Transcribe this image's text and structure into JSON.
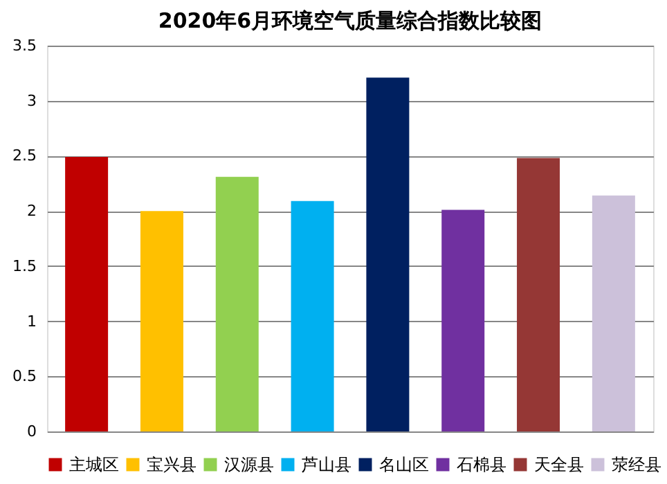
{
  "chart_data": {
    "type": "bar",
    "title": "2020年6月环境空气质量综合指数比较图",
    "categories": [
      null,
      null,
      null,
      null,
      null,
      null,
      null,
      null
    ],
    "series": [
      {
        "name": "主城区",
        "color": "#c00000",
        "values": [
          2.49,
          null,
          null,
          null,
          null,
          null,
          null,
          null
        ]
      },
      {
        "name": "宝兴县",
        "color": "#ffc000",
        "values": [
          null,
          2.0,
          null,
          null,
          null,
          null,
          null,
          null
        ]
      },
      {
        "name": "汉源县",
        "color": "#92d050",
        "values": [
          null,
          null,
          2.31,
          null,
          null,
          null,
          null,
          null
        ]
      },
      {
        "name": "芦山县",
        "color": "#00b0f0",
        "values": [
          null,
          null,
          null,
          2.09,
          null,
          null,
          null,
          null
        ]
      },
      {
        "name": "名山区",
        "color": "#002060",
        "values": [
          null,
          null,
          null,
          null,
          3.21,
          null,
          null,
          null
        ]
      },
      {
        "name": "石棉县",
        "color": "#7030a0",
        "values": [
          null,
          null,
          null,
          null,
          null,
          2.01,
          null,
          null
        ]
      },
      {
        "name": "天全县",
        "color": "#953735",
        "values": [
          null,
          null,
          null,
          null,
          null,
          null,
          2.48,
          null
        ]
      },
      {
        "name": "荥经县",
        "color": "#ccc1da",
        "values": [
          null,
          null,
          null,
          null,
          null,
          null,
          null,
          2.14
        ]
      }
    ],
    "ylim": [
      0,
      3.5
    ],
    "yticks": [
      0,
      0.5,
      1,
      1.5,
      2,
      2.5,
      3,
      3.5
    ],
    "grid": "y",
    "legend": "bottom",
    "tick_labels": "y"
  }
}
